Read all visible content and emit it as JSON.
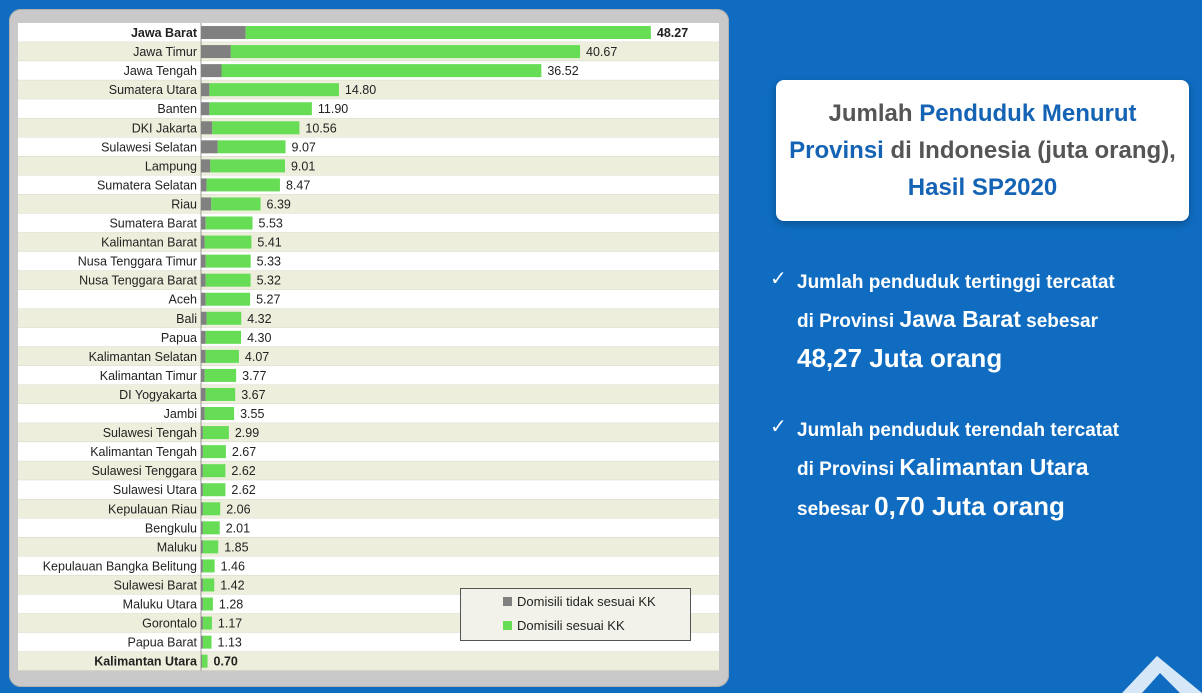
{
  "chart_data": {
    "type": "bar",
    "orientation": "horizontal",
    "stacked": true,
    "categories": [
      "Jawa Barat",
      "Jawa Timur",
      "Jawa Tengah",
      "Sumatera Utara",
      "Banten",
      "DKI Jakarta",
      "Sulawesi Selatan",
      "Lampung",
      "Sumatera Selatan",
      "Riau",
      "Sumatera Barat",
      "Kalimantan Barat",
      "Nusa Tenggara Timur",
      "Nusa Tenggara Barat",
      "Aceh",
      "Bali",
      "Papua",
      "Kalimantan Selatan",
      "Kalimantan Timur",
      "DI Yogyakarta",
      "Jambi",
      "Sulawesi Tengah",
      "Kalimantan Tengah",
      "Sulawesi Tenggara",
      "Sulawesi Utara",
      "Kepulauan Riau",
      "Bengkulu",
      "Maluku",
      "Kepulauan Bangka Belitung",
      "Sulawesi Barat",
      "Maluku Utara",
      "Gorontalo",
      "Papua Barat",
      "Kalimantan Utara"
    ],
    "totals": [
      48.27,
      40.67,
      36.52,
      14.8,
      11.9,
      10.56,
      9.07,
      9.01,
      8.47,
      6.39,
      5.53,
      5.41,
      5.33,
      5.32,
      5.27,
      4.32,
      4.3,
      4.07,
      3.77,
      3.67,
      3.55,
      2.99,
      2.67,
      2.62,
      2.62,
      2.06,
      2.01,
      1.85,
      1.46,
      1.42,
      1.28,
      1.17,
      1.13,
      0.7
    ],
    "total_labels": [
      "48.27",
      "40.67",
      "36.52",
      "14.80",
      "11.90",
      "10.56",
      "9.07",
      "9.01",
      "8.47",
      "6.39",
      "5.53",
      "5.41",
      "5.33",
      "5.32",
      "5.27",
      "4.32",
      "4.30",
      "4.07",
      "3.77",
      "3.67",
      "3.55",
      "2.99",
      "2.67",
      "2.62",
      "2.62",
      "2.06",
      "2.01",
      "1.85",
      "1.46",
      "1.42",
      "1.28",
      "1.17",
      "1.13",
      "0.70"
    ],
    "series": [
      {
        "name": "Domisili tidak sesuai KK",
        "color": "#808080",
        "values": [
          4.8,
          3.2,
          2.2,
          0.9,
          0.9,
          1.2,
          1.8,
          1.0,
          0.6,
          1.1,
          0.5,
          0.4,
          0.5,
          0.5,
          0.5,
          0.6,
          0.5,
          0.5,
          0.4,
          0.5,
          0.4,
          0.2,
          0.2,
          0.2,
          0.2,
          0.2,
          0.2,
          0.2,
          0.2,
          0.2,
          0.2,
          0.2,
          0.2,
          0.1
        ]
      },
      {
        "name": "Domisili sesuai KK",
        "color": "#66dd55",
        "values": [
          43.47,
          37.47,
          34.32,
          13.9,
          11.0,
          9.36,
          7.27,
          8.01,
          7.87,
          5.29,
          5.03,
          5.01,
          4.83,
          4.82,
          4.77,
          3.72,
          3.8,
          3.57,
          3.37,
          3.17,
          3.15,
          2.79,
          2.47,
          2.42,
          2.42,
          1.86,
          1.81,
          1.65,
          1.26,
          1.22,
          1.08,
          0.97,
          0.93,
          0.6
        ]
      }
    ],
    "highlight_high": {
      "index": 0,
      "color": "#1a66b8"
    },
    "highlight_low": {
      "index": 33,
      "color": "#cc1111"
    },
    "xlim": [
      0,
      50
    ],
    "legend_position": "bottom-right"
  },
  "legend": {
    "item1": "Domisili tidak sesuai KK",
    "item2": "Domisili sesuai KK"
  },
  "title": {
    "part1": "Jumlah ",
    "part2": "Penduduk Menurut",
    "part3": "Provinsi",
    "part4": " di Indonesia (juta orang),",
    "part5": "Hasil SP2020"
  },
  "bullets": {
    "b1_line1": "Jumlah penduduk tertinggi tercatat",
    "b1_line2a": "di Provinsi ",
    "b1_line2b": "Jawa Barat",
    "b1_line2c": " sebesar",
    "b1_line3": "48,27 Juta orang",
    "b2_line1": "Jumlah penduduk terendah tercatat",
    "b2_line2a": "di Provinsi ",
    "b2_line2b": "Kalimantan Utara",
    "b2_line3a": "sebesar ",
    "b2_line3b": "0,70 Juta orang"
  },
  "colors": {
    "background": "#0f6cc0",
    "accent_blue": "#1463b4",
    "title_gray": "#555555"
  }
}
